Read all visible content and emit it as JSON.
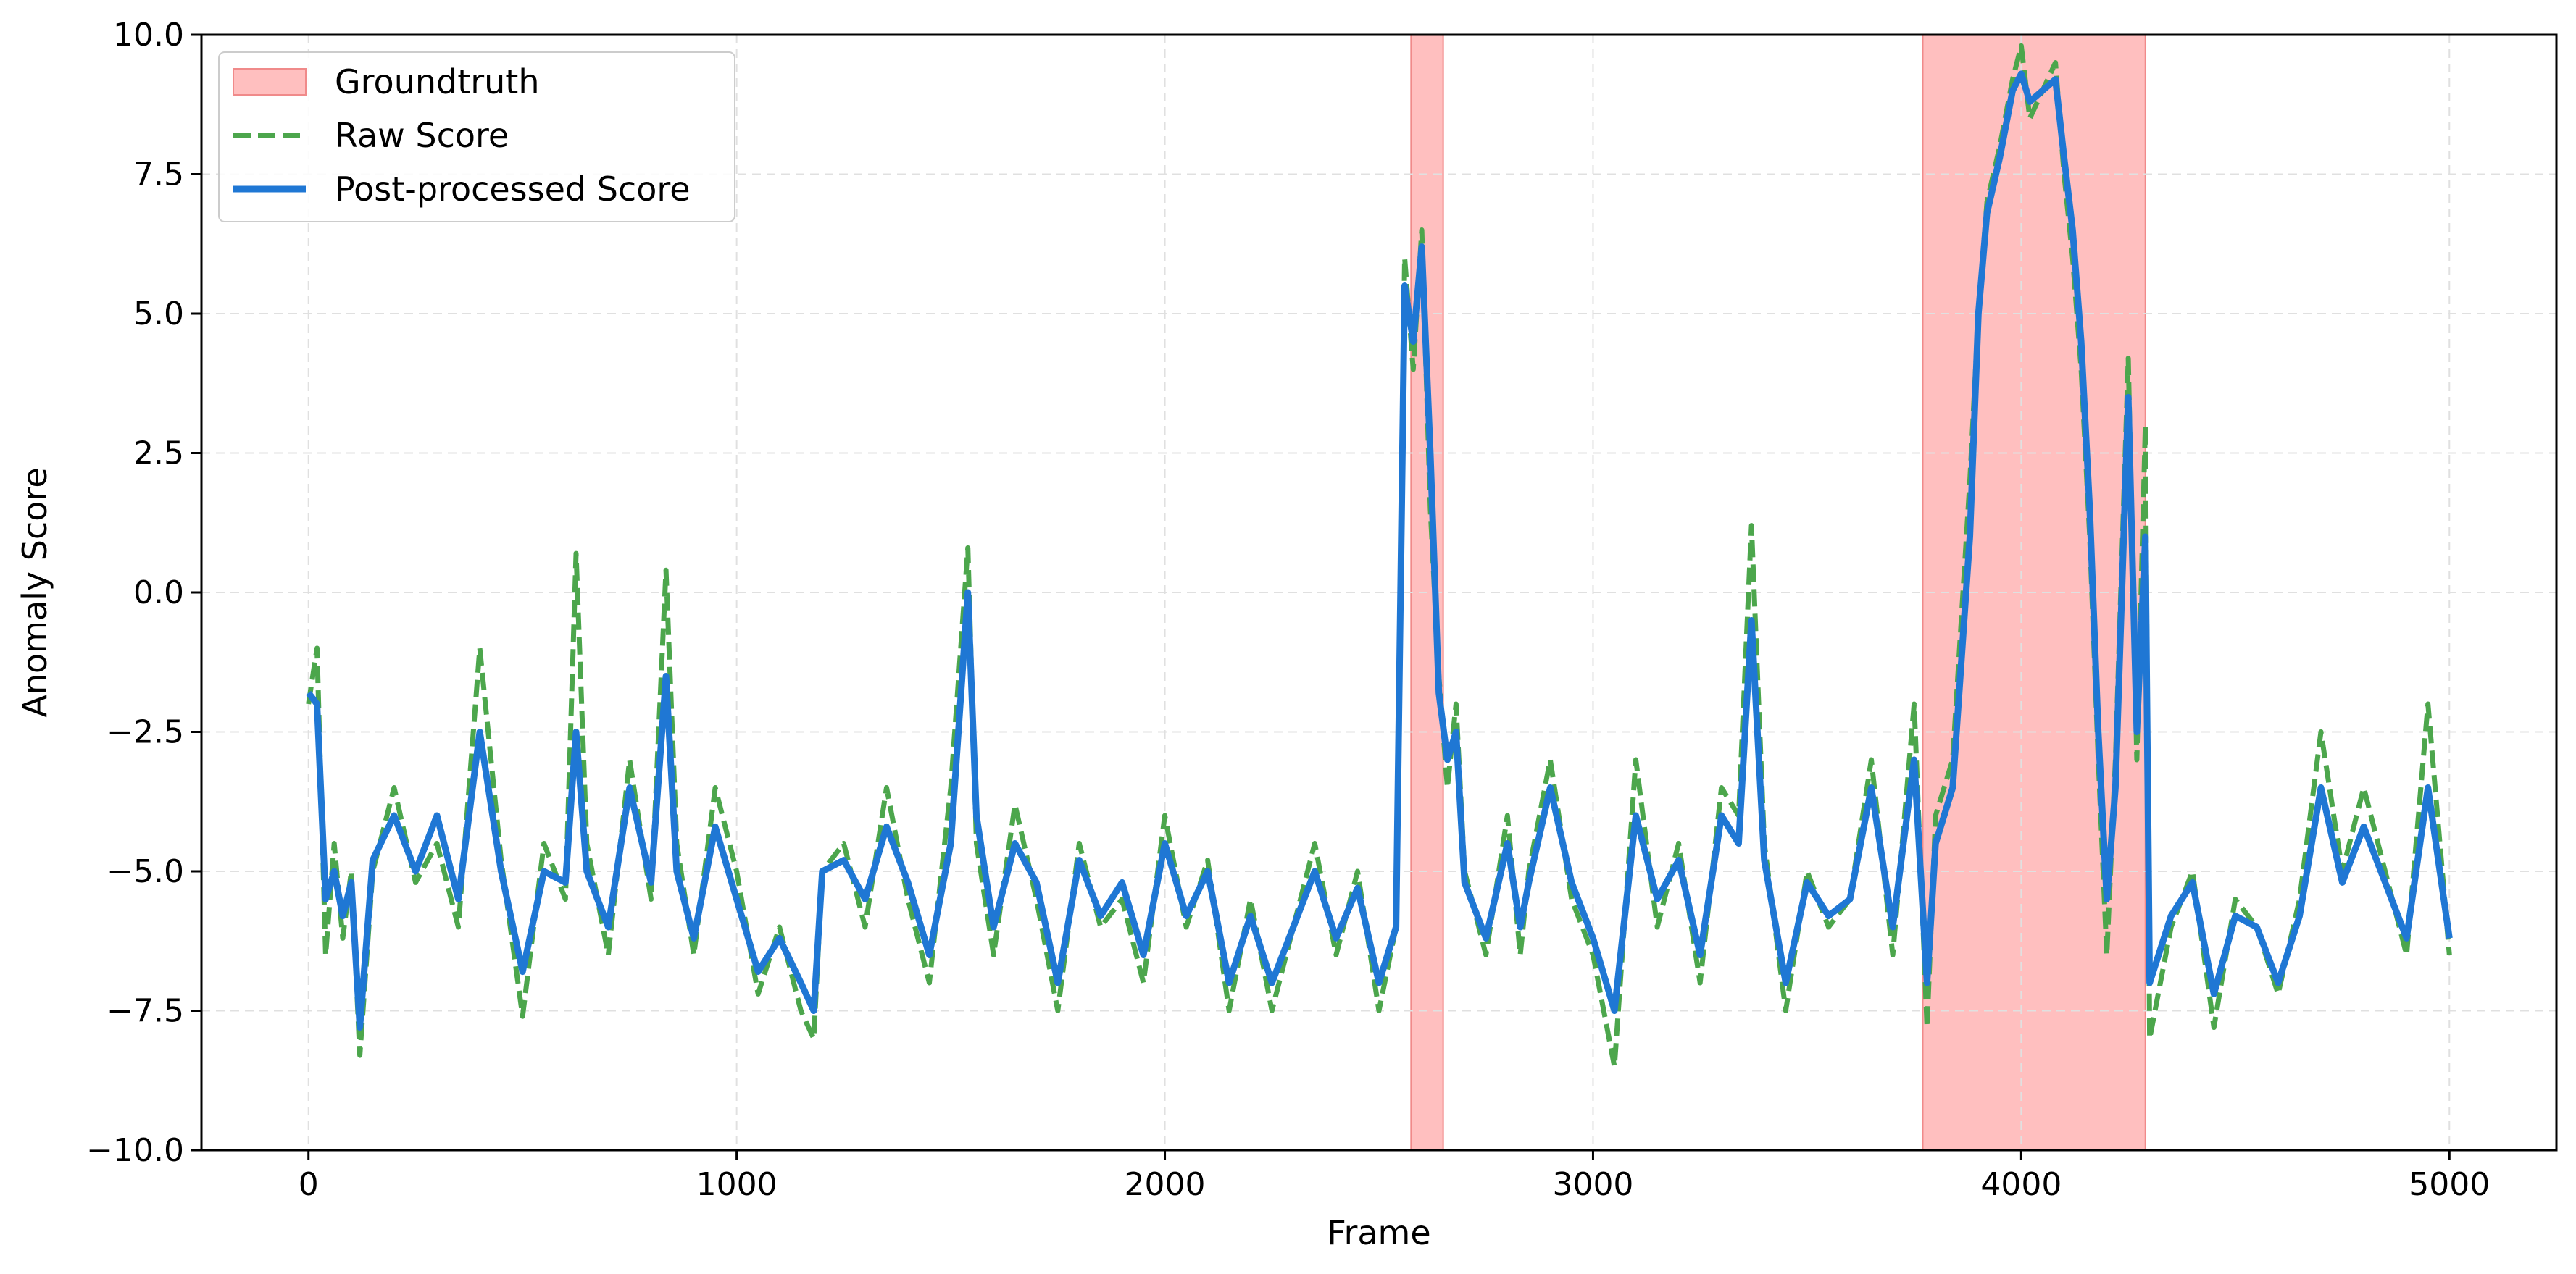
{
  "chart_data": {
    "type": "line",
    "title": "",
    "xlabel": "Frame",
    "ylabel": "Anomaly Score",
    "xlim": [
      -250,
      5250
    ],
    "ylim": [
      -10,
      10
    ],
    "x_ticks": [
      0,
      1000,
      2000,
      3000,
      4000,
      5000
    ],
    "x_tick_labels": [
      "0",
      "1000",
      "2000",
      "3000",
      "4000",
      "5000"
    ],
    "y_ticks": [
      -10,
      -7.5,
      -5,
      -2.5,
      0,
      2.5,
      5,
      7.5,
      10
    ],
    "y_tick_labels": [
      "−10.0",
      "−7.5",
      "−5.0",
      "−2.5",
      "0.0",
      "2.5",
      "5.0",
      "7.5",
      "10.0"
    ],
    "grid": true,
    "legend_position": "top-left",
    "groundtruth": {
      "name": "Groundtruth",
      "color": "#ffbfbf",
      "edge_color": "#f08a8a",
      "intervals": [
        [
          2575,
          2650
        ],
        [
          3770,
          4290
        ]
      ]
    },
    "series": [
      {
        "name": "Raw Score",
        "color": "#4ca64c",
        "style": "dashed",
        "x": [
          0,
          20,
          40,
          60,
          80,
          100,
          120,
          150,
          200,
          250,
          300,
          350,
          400,
          450,
          500,
          550,
          600,
          625,
          650,
          700,
          750,
          800,
          835,
          860,
          900,
          950,
          1000,
          1050,
          1100,
          1150,
          1180,
          1200,
          1250,
          1300,
          1350,
          1400,
          1450,
          1500,
          1540,
          1560,
          1600,
          1650,
          1700,
          1750,
          1800,
          1850,
          1900,
          1950,
          2000,
          2050,
          2100,
          2150,
          2200,
          2250,
          2300,
          2350,
          2400,
          2450,
          2500,
          2540,
          2560,
          2580,
          2600,
          2620,
          2640,
          2660,
          2680,
          2700,
          2750,
          2800,
          2830,
          2850,
          2900,
          2950,
          3000,
          3050,
          3100,
          3150,
          3200,
          3250,
          3300,
          3340,
          3370,
          3400,
          3450,
          3500,
          3550,
          3600,
          3650,
          3700,
          3750,
          3780,
          3800,
          3840,
          3880,
          3900,
          3920,
          3950,
          3980,
          4000,
          4020,
          4050,
          4080,
          4100,
          4120,
          4140,
          4160,
          4180,
          4200,
          4220,
          4250,
          4270,
          4290,
          4300,
          4350,
          4400,
          4450,
          4500,
          4550,
          4600,
          4650,
          4700,
          4750,
          4800,
          4850,
          4900,
          4950,
          5000
        ],
        "y": [
          -2.0,
          -1.0,
          -6.5,
          -4.5,
          -6.2,
          -5.0,
          -8.3,
          -5.0,
          -3.5,
          -5.2,
          -4.5,
          -6.0,
          -1.0,
          -4.8,
          -7.6,
          -4.5,
          -5.5,
          0.7,
          -4.5,
          -6.5,
          -3.0,
          -5.5,
          0.4,
          -4.5,
          -6.5,
          -3.5,
          -5.0,
          -7.2,
          -6.0,
          -7.5,
          -8.0,
          -5.0,
          -4.5,
          -6.0,
          -3.5,
          -5.5,
          -7.0,
          -3.5,
          0.8,
          -4.5,
          -6.5,
          -3.8,
          -5.5,
          -7.5,
          -4.5,
          -6.0,
          -5.5,
          -7.0,
          -4.0,
          -6.0,
          -4.8,
          -7.5,
          -5.5,
          -7.5,
          -6.0,
          -4.5,
          -6.5,
          -5.0,
          -7.5,
          -6.0,
          6.0,
          4.0,
          6.5,
          1.5,
          -1.5,
          -3.5,
          -2.0,
          -5.0,
          -6.5,
          -4.0,
          -6.5,
          -5.0,
          -3.0,
          -5.5,
          -6.5,
          -8.5,
          -3.0,
          -6.0,
          -4.5,
          -7.0,
          -3.5,
          -4.0,
          1.2,
          -4.5,
          -7.5,
          -5.0,
          -6.0,
          -5.5,
          -3.0,
          -6.5,
          -2.0,
          -7.8,
          -4.0,
          -3.0,
          2.0,
          5.0,
          7.0,
          8.0,
          9.2,
          9.8,
          8.5,
          9.0,
          9.5,
          7.5,
          6.0,
          4.0,
          1.0,
          -3.0,
          -6.5,
          -3.0,
          4.2,
          -3.0,
          3.0,
          -8.0,
          -6.0,
          -5.0,
          -7.8,
          -5.5,
          -6.0,
          -7.2,
          -5.5,
          -2.5,
          -5.0,
          -3.5,
          -5.0,
          -6.5,
          -2.0,
          -6.5
        ]
      },
      {
        "name": "Post-processed Score",
        "color": "#1f77d4",
        "style": "solid",
        "x": [
          0,
          20,
          40,
          60,
          80,
          100,
          120,
          150,
          200,
          250,
          300,
          350,
          400,
          450,
          500,
          550,
          600,
          625,
          650,
          700,
          750,
          800,
          835,
          860,
          900,
          950,
          1000,
          1050,
          1100,
          1150,
          1180,
          1200,
          1250,
          1300,
          1350,
          1400,
          1450,
          1500,
          1540,
          1560,
          1600,
          1650,
          1700,
          1750,
          1800,
          1850,
          1900,
          1950,
          2000,
          2050,
          2100,
          2150,
          2200,
          2250,
          2300,
          2350,
          2400,
          2450,
          2500,
          2540,
          2560,
          2580,
          2600,
          2620,
          2640,
          2660,
          2680,
          2700,
          2750,
          2800,
          2830,
          2850,
          2900,
          2950,
          3000,
          3050,
          3100,
          3150,
          3200,
          3250,
          3300,
          3340,
          3370,
          3400,
          3450,
          3500,
          3550,
          3600,
          3650,
          3700,
          3750,
          3780,
          3800,
          3840,
          3880,
          3900,
          3920,
          3950,
          3980,
          4000,
          4020,
          4050,
          4080,
          4100,
          4120,
          4140,
          4160,
          4180,
          4200,
          4220,
          4250,
          4270,
          4290,
          4300,
          4350,
          4400,
          4450,
          4500,
          4550,
          4600,
          4650,
          4700,
          4750,
          4800,
          4850,
          4900,
          4950,
          5000
        ],
        "y": [
          -1.8,
          -2.0,
          -5.5,
          -5.0,
          -5.8,
          -5.2,
          -7.8,
          -4.8,
          -4.0,
          -5.0,
          -4.0,
          -5.5,
          -2.5,
          -5.0,
          -6.8,
          -5.0,
          -5.2,
          -2.5,
          -5.0,
          -6.0,
          -3.5,
          -5.2,
          -1.5,
          -5.0,
          -6.2,
          -4.2,
          -5.5,
          -6.8,
          -6.2,
          -7.0,
          -7.5,
          -5.0,
          -4.8,
          -5.5,
          -4.2,
          -5.2,
          -6.5,
          -4.5,
          0.0,
          -4.0,
          -6.0,
          -4.5,
          -5.2,
          -7.0,
          -4.8,
          -5.8,
          -5.2,
          -6.5,
          -4.5,
          -5.8,
          -5.0,
          -7.0,
          -5.8,
          -7.0,
          -6.0,
          -5.0,
          -6.2,
          -5.3,
          -7.0,
          -6.0,
          5.5,
          4.5,
          6.2,
          2.5,
          -1.8,
          -3.0,
          -2.5,
          -5.2,
          -6.2,
          -4.5,
          -6.0,
          -5.2,
          -3.5,
          -5.2,
          -6.2,
          -7.5,
          -4.0,
          -5.5,
          -4.8,
          -6.5,
          -4.0,
          -4.5,
          -0.5,
          -4.8,
          -7.0,
          -5.2,
          -5.8,
          -5.5,
          -3.5,
          -6.0,
          -3.0,
          -7.0,
          -4.5,
          -3.5,
          1.0,
          5.0,
          6.8,
          7.8,
          9.0,
          9.3,
          8.8,
          9.0,
          9.2,
          7.8,
          6.5,
          4.5,
          1.5,
          -2.5,
          -5.5,
          -3.5,
          3.5,
          -2.5,
          1.0,
          -7.0,
          -5.8,
          -5.2,
          -7.2,
          -5.8,
          -6.0,
          -7.0,
          -5.8,
          -3.5,
          -5.2,
          -4.2,
          -5.2,
          -6.2,
          -3.5,
          -6.2
        ]
      }
    ]
  }
}
